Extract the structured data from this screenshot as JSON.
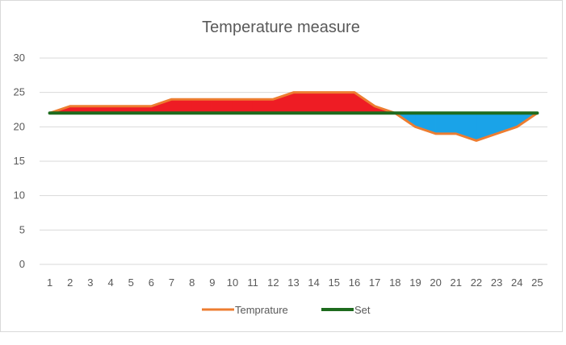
{
  "chart_data": {
    "type": "line",
    "title": "Temperature measure",
    "xlabel": "",
    "ylabel": "",
    "categories": [
      "1",
      "2",
      "3",
      "4",
      "5",
      "6",
      "7",
      "8",
      "9",
      "10",
      "11",
      "12",
      "13",
      "14",
      "15",
      "16",
      "17",
      "18",
      "19",
      "20",
      "21",
      "22",
      "23",
      "24",
      "25"
    ],
    "ylim": [
      0,
      30
    ],
    "yticks": [
      0,
      5,
      10,
      15,
      20,
      25,
      30
    ],
    "grid": true,
    "legend": "bottom",
    "series": [
      {
        "name": "Temprature",
        "color": "#ED7D31",
        "values": [
          22,
          23,
          23,
          23,
          23,
          23,
          24,
          24,
          24,
          24,
          24,
          24,
          25,
          25,
          25,
          25,
          23,
          22,
          20,
          19,
          19,
          18,
          19,
          20,
          22
        ]
      },
      {
        "name": "Set",
        "color": "#1E6B1E",
        "values": [
          22,
          22,
          22,
          22,
          22,
          22,
          22,
          22,
          22,
          22,
          22,
          22,
          22,
          22,
          22,
          22,
          22,
          22,
          22,
          22,
          22,
          22,
          22,
          22,
          22
        ]
      }
    ],
    "fill_above_color": "#EE1C24",
    "fill_below_color": "#1AA3E8"
  }
}
